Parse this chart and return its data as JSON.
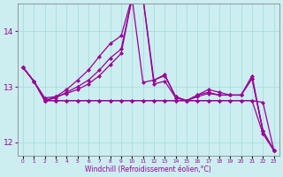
{
  "xlabel": "Windchill (Refroidissement éolien,°C)",
  "background_color": "#cceef0",
  "grid_color": "#aadddd",
  "line_color": "#990099",
  "spine_color": "#888888",
  "xlim": [
    -0.5,
    23.5
  ],
  "ylim": [
    11.75,
    14.5
  ],
  "yticks": [
    12,
    13,
    14
  ],
  "ytick_labels": [
    "12",
    "13",
    "14"
  ],
  "xtick_labels": [
    "0",
    "1",
    "2",
    "3",
    "4",
    "5",
    "6",
    "7",
    "8",
    "9",
    "10",
    "11",
    "12",
    "13",
    "14",
    "15",
    "16",
    "17",
    "18",
    "19",
    "20",
    "21",
    "22",
    "23"
  ],
  "series": [
    {
      "y": [
        13.35,
        13.1,
        12.75,
        12.75,
        12.75,
        12.75,
        12.75,
        12.75,
        12.75,
        12.75,
        12.75,
        12.75,
        12.75,
        12.75,
        12.75,
        12.75,
        12.75,
        12.75,
        12.75,
        12.75,
        12.75,
        12.75,
        12.15,
        11.85
      ]
    },
    {
      "y": [
        13.35,
        13.1,
        12.8,
        12.82,
        12.88,
        12.95,
        13.05,
        13.2,
        13.4,
        13.6,
        14.6,
        14.6,
        13.05,
        13.1,
        12.8,
        12.75,
        12.82,
        12.88,
        12.85,
        12.85,
        12.85,
        13.15,
        12.2,
        11.85
      ]
    },
    {
      "y": [
        13.35,
        13.1,
        12.75,
        12.8,
        12.9,
        13.0,
        13.12,
        13.3,
        13.52,
        13.68,
        14.6,
        13.08,
        13.12,
        13.2,
        12.82,
        12.75,
        12.85,
        12.9,
        12.85,
        12.85,
        12.85,
        13.15,
        12.2,
        11.85
      ]
    },
    {
      "y": [
        13.35,
        13.1,
        12.75,
        12.82,
        12.95,
        13.12,
        13.3,
        13.55,
        13.78,
        13.92,
        14.62,
        14.62,
        13.12,
        13.22,
        12.82,
        12.75,
        12.85,
        12.95,
        12.9,
        12.85,
        12.85,
        13.2,
        12.2,
        11.85
      ]
    },
    {
      "y": [
        13.35,
        13.1,
        12.75,
        12.75,
        12.75,
        12.75,
        12.75,
        12.75,
        12.75,
        12.75,
        12.75,
        12.75,
        12.75,
        12.75,
        12.75,
        12.75,
        12.75,
        12.75,
        12.75,
        12.75,
        12.75,
        12.75,
        12.72,
        11.85
      ]
    }
  ]
}
